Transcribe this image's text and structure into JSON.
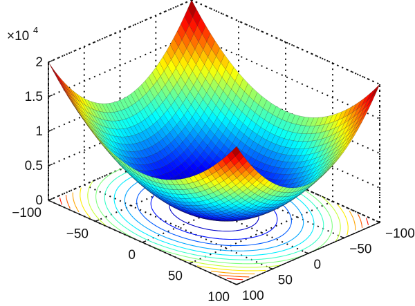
{
  "chart_data": {
    "type": "surface",
    "function": "z = x^2 + y^2",
    "x_range": [
      -100,
      100
    ],
    "y_range": [
      -100,
      100
    ],
    "zlim": [
      0,
      20000
    ],
    "z_scale_label": "×10",
    "z_scale_exponent": "4",
    "z_ticks": [
      "0",
      "0.5",
      "1",
      "1.5",
      "2"
    ],
    "z_tick_values": [
      0,
      5000,
      10000,
      15000,
      20000
    ],
    "x_ticks": [
      "−100",
      "−50",
      "0",
      "50",
      "100"
    ],
    "x_tick_values": [
      -100,
      -50,
      0,
      50,
      100
    ],
    "y_ticks": [
      "100",
      "50",
      "0",
      "−50",
      "−100"
    ],
    "y_tick_values": [
      100,
      50,
      0,
      -50,
      -100
    ],
    "colormap": "jet",
    "contour_projection": true,
    "grid": true
  }
}
